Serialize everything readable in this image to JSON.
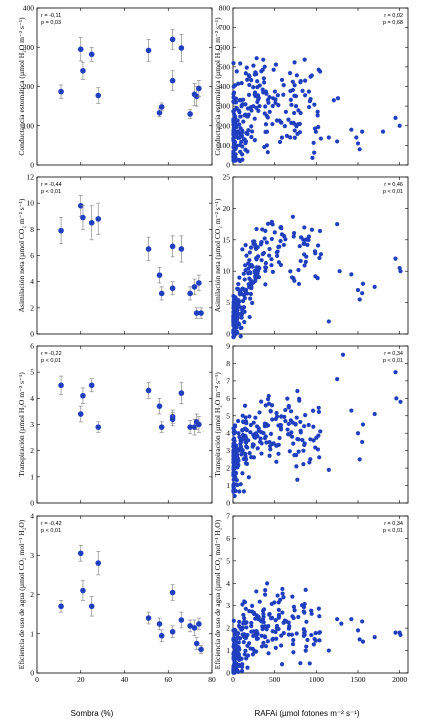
{
  "figure": {
    "shared_xlabel_left": "Sombra (%)",
    "shared_xlabel_right": "RAFAi (µmol fotones m⁻² s⁻¹)",
    "marker_color": "#1f3fbf",
    "errorbar_color": "#8a8a8a"
  },
  "chart_data": [
    {
      "id": "A1",
      "type": "scatter",
      "row": 0,
      "col": 0,
      "ylabel": "Conductancia estomática (µmol H₂O m⁻² s⁻¹)",
      "xlim": [
        0,
        80
      ],
      "ylim": [
        0,
        400
      ],
      "xticks": [
        0,
        20,
        40,
        60,
        80
      ],
      "yticks": [
        0,
        100,
        200,
        300,
        400
      ],
      "stat_r": "r = -0,11",
      "stat_p": "p = 0,03",
      "points": [
        {
          "x": 11,
          "y": 187,
          "err": 17
        },
        {
          "x": 20,
          "y": 295,
          "err": 30
        },
        {
          "x": 21,
          "y": 240,
          "err": 22
        },
        {
          "x": 25,
          "y": 282,
          "err": 18
        },
        {
          "x": 28,
          "y": 177,
          "err": 20
        },
        {
          "x": 51,
          "y": 292,
          "err": 28
        },
        {
          "x": 56,
          "y": 133,
          "err": 10
        },
        {
          "x": 57,
          "y": 148,
          "err": 10
        },
        {
          "x": 62,
          "y": 320,
          "err": 25
        },
        {
          "x": 62,
          "y": 215,
          "err": 25
        },
        {
          "x": 66,
          "y": 298,
          "err": 35
        },
        {
          "x": 70,
          "y": 130,
          "err": 12
        },
        {
          "x": 72,
          "y": 180,
          "err": 28
        },
        {
          "x": 73,
          "y": 175,
          "err": 25
        },
        {
          "x": 74,
          "y": 195,
          "err": 20
        }
      ]
    },
    {
      "id": "B1",
      "type": "scatter",
      "row": 0,
      "col": 1,
      "ylabel": "Conductancia estomática (µmol H₂O m⁻² s⁻¹)",
      "xlim": [
        0,
        2100
      ],
      "ylim": [
        0,
        800
      ],
      "xticks": [
        0,
        500,
        1000,
        1500,
        2000
      ],
      "yticks": [
        0,
        100,
        200,
        300,
        400,
        500,
        600,
        700,
        800
      ],
      "stat_r": "r = 0,02",
      "stat_p": "p = 0,68",
      "cloud": {
        "seed": 11,
        "n": 260,
        "ymin": 20,
        "ymax": 720,
        "trend": [
          [
            0,
            150
          ],
          [
            300,
            320
          ],
          [
            2000,
            200
          ]
        ],
        "spread": 160
      },
      "points": [
        {
          "x": 1150,
          "y": 140
        },
        {
          "x": 1210,
          "y": 330
        },
        {
          "x": 1260,
          "y": 340
        },
        {
          "x": 1420,
          "y": 180
        },
        {
          "x": 1480,
          "y": 140
        },
        {
          "x": 1500,
          "y": 110
        },
        {
          "x": 1520,
          "y": 80
        },
        {
          "x": 1550,
          "y": 170
        },
        {
          "x": 1800,
          "y": 170
        },
        {
          "x": 1950,
          "y": 240
        },
        {
          "x": 2000,
          "y": 200
        },
        {
          "x": 1250,
          "y": 120
        }
      ]
    },
    {
      "id": "A2",
      "type": "scatter",
      "row": 1,
      "col": 0,
      "ylabel": "Asimilación neta (µmol CO₂ m⁻² s⁻¹)",
      "xlim": [
        0,
        80
      ],
      "ylim": [
        0,
        12
      ],
      "xticks": [
        0,
        20,
        40,
        60,
        80
      ],
      "yticks": [
        0,
        2,
        4,
        6,
        8,
        10,
        12
      ],
      "stat_r": "r = -0,44",
      "stat_p": "p < 0,01",
      "points": [
        {
          "x": 11,
          "y": 7.9,
          "err": 1.0
        },
        {
          "x": 20,
          "y": 9.8,
          "err": 0.8
        },
        {
          "x": 21,
          "y": 8.9,
          "err": 0.9
        },
        {
          "x": 25,
          "y": 8.5,
          "err": 1.3
        },
        {
          "x": 28,
          "y": 8.8,
          "err": 1.2
        },
        {
          "x": 51,
          "y": 6.5,
          "err": 0.9
        },
        {
          "x": 56,
          "y": 4.5,
          "err": 0.6
        },
        {
          "x": 57,
          "y": 3.1,
          "err": 0.5
        },
        {
          "x": 62,
          "y": 6.7,
          "err": 0.8
        },
        {
          "x": 62,
          "y": 3.5,
          "err": 0.5
        },
        {
          "x": 66,
          "y": 6.5,
          "err": 1.0
        },
        {
          "x": 70,
          "y": 3.1,
          "err": 0.5
        },
        {
          "x": 72,
          "y": 3.6,
          "err": 0.6
        },
        {
          "x": 73,
          "y": 1.6,
          "err": 0.4
        },
        {
          "x": 74,
          "y": 3.9,
          "err": 0.6
        },
        {
          "x": 75,
          "y": 1.6,
          "err": 0.4
        }
      ]
    },
    {
      "id": "B2",
      "type": "scatter",
      "row": 1,
      "col": 1,
      "ylabel": "Asimilación neta (µmol CO₂ m⁻² s⁻¹)",
      "xlim": [
        0,
        2100
      ],
      "ylim": [
        0,
        25
      ],
      "xticks": [
        0,
        500,
        1000,
        1500,
        2000
      ],
      "yticks": [
        0,
        5,
        10,
        15,
        20,
        25
      ],
      "stat_r": "r = 0,46",
      "stat_p": "p < 0,01",
      "cloud": {
        "seed": 22,
        "n": 260,
        "ymin": -0.5,
        "ymax": 22.5,
        "trend": [
          [
            0,
            1
          ],
          [
            100,
            6
          ],
          [
            300,
            12
          ],
          [
            600,
            14
          ],
          [
            2000,
            11
          ]
        ],
        "spread": 3.2
      },
      "points": [
        {
          "x": 1150,
          "y": 2.0
        },
        {
          "x": 1250,
          "y": 17.5
        },
        {
          "x": 1280,
          "y": 10.0
        },
        {
          "x": 1420,
          "y": 9.5
        },
        {
          "x": 1500,
          "y": 7.0
        },
        {
          "x": 1520,
          "y": 5.5
        },
        {
          "x": 1550,
          "y": 6.5
        },
        {
          "x": 1560,
          "y": 8.0
        },
        {
          "x": 1700,
          "y": 7.5
        },
        {
          "x": 1950,
          "y": 12.0
        },
        {
          "x": 2000,
          "y": 10.5
        },
        {
          "x": 2010,
          "y": 10.0
        }
      ]
    },
    {
      "id": "A3",
      "type": "scatter",
      "row": 2,
      "col": 0,
      "ylabel": "Transpiración (µmol H₂O m⁻² s⁻¹)",
      "xlim": [
        0,
        80
      ],
      "ylim": [
        0,
        6
      ],
      "xticks": [
        0,
        20,
        40,
        60,
        80
      ],
      "yticks": [
        0,
        1,
        2,
        3,
        4,
        5,
        6
      ],
      "stat_r": "r = -0,22",
      "stat_p": "p < 0,01",
      "points": [
        {
          "x": 11,
          "y": 4.5,
          "err": 0.35
        },
        {
          "x": 20,
          "y": 3.4,
          "err": 0.3
        },
        {
          "x": 21,
          "y": 4.1,
          "err": 0.3
        },
        {
          "x": 25,
          "y": 4.5,
          "err": 0.25
        },
        {
          "x": 28,
          "y": 2.9,
          "err": 0.2
        },
        {
          "x": 51,
          "y": 4.3,
          "err": 0.3
        },
        {
          "x": 56,
          "y": 3.7,
          "err": 0.3
        },
        {
          "x": 57,
          "y": 2.9,
          "err": 0.2
        },
        {
          "x": 62,
          "y": 3.3,
          "err": 0.25
        },
        {
          "x": 62,
          "y": 3.2,
          "err": 0.25
        },
        {
          "x": 66,
          "y": 4.2,
          "err": 0.4
        },
        {
          "x": 70,
          "y": 2.9,
          "err": 0.25
        },
        {
          "x": 72,
          "y": 2.9,
          "err": 0.3
        },
        {
          "x": 73,
          "y": 3.1,
          "err": 0.3
        },
        {
          "x": 74,
          "y": 3.0,
          "err": 0.3
        }
      ]
    },
    {
      "id": "B3",
      "type": "scatter",
      "row": 2,
      "col": 1,
      "ylabel": "Transpiración (µmol H₂O m⁻² s⁻¹)",
      "xlim": [
        0,
        2100
      ],
      "ylim": [
        0,
        9
      ],
      "xticks": [
        0,
        500,
        1000,
        1500,
        2000
      ],
      "yticks": [
        0,
        1,
        2,
        3,
        4,
        5,
        6,
        7,
        8,
        9
      ],
      "stat_r": "r = 0,34",
      "stat_p": "p < 0,01",
      "cloud": {
        "seed": 33,
        "n": 260,
        "ymin": 0.4,
        "ymax": 7.8,
        "trend": [
          [
            0,
            2.2
          ],
          [
            200,
            3.8
          ],
          [
            500,
            4.2
          ],
          [
            2000,
            4.6
          ]
        ],
        "spread": 1.3
      },
      "points": [
        {
          "x": 1150,
          "y": 1.9
        },
        {
          "x": 1250,
          "y": 7.1
        },
        {
          "x": 1320,
          "y": 8.5
        },
        {
          "x": 1420,
          "y": 5.3
        },
        {
          "x": 1500,
          "y": 4.0
        },
        {
          "x": 1520,
          "y": 2.5
        },
        {
          "x": 1550,
          "y": 3.5
        },
        {
          "x": 1560,
          "y": 4.5
        },
        {
          "x": 1700,
          "y": 5.1
        },
        {
          "x": 1950,
          "y": 7.5
        },
        {
          "x": 1960,
          "y": 6.0
        },
        {
          "x": 2010,
          "y": 5.8
        }
      ]
    },
    {
      "id": "A4",
      "type": "scatter",
      "row": 3,
      "col": 0,
      "ylabel": "Eficiencia de uso de agua (µmol CO₂ mol⁻¹ H₂O)",
      "xlim": [
        0,
        80
      ],
      "ylim": [
        0,
        4
      ],
      "xticks": [
        0,
        20,
        40,
        60,
        80
      ],
      "yticks": [
        0,
        1,
        2,
        3,
        4
      ],
      "stat_r": "r = -0,42",
      "stat_p": "p < 0,01",
      "points": [
        {
          "x": 11,
          "y": 1.7,
          "err": 0.15
        },
        {
          "x": 20,
          "y": 3.05,
          "err": 0.2
        },
        {
          "x": 21,
          "y": 2.1,
          "err": 0.25
        },
        {
          "x": 25,
          "y": 1.7,
          "err": 0.25
        },
        {
          "x": 28,
          "y": 2.8,
          "err": 0.3
        },
        {
          "x": 51,
          "y": 1.4,
          "err": 0.15
        },
        {
          "x": 56,
          "y": 1.25,
          "err": 0.15
        },
        {
          "x": 57,
          "y": 0.95,
          "err": 0.15
        },
        {
          "x": 62,
          "y": 2.05,
          "err": 0.2
        },
        {
          "x": 62,
          "y": 1.05,
          "err": 0.15
        },
        {
          "x": 66,
          "y": 1.35,
          "err": 0.2
        },
        {
          "x": 70,
          "y": 1.2,
          "err": 0.15
        },
        {
          "x": 72,
          "y": 1.15,
          "err": 0.2
        },
        {
          "x": 73,
          "y": 0.75,
          "err": 0.15
        },
        {
          "x": 74,
          "y": 1.25,
          "err": 0.15
        },
        {
          "x": 75,
          "y": 0.6,
          "err": 0.1
        }
      ]
    },
    {
      "id": "B4",
      "type": "scatter",
      "row": 3,
      "col": 1,
      "ylabel": "Eficiencia de uso de agua (µmol CO₂ mol⁻¹ H₂O)",
      "xlim": [
        0,
        2100
      ],
      "ylim": [
        0,
        7
      ],
      "xticks": [
        0,
        500,
        1000,
        1500,
        2000
      ],
      "yticks": [
        0,
        1,
        2,
        3,
        4,
        5,
        6,
        7
      ],
      "stat_r": "r = 0,34",
      "stat_p": "p < 0,01",
      "cloud": {
        "seed": 44,
        "n": 260,
        "ymin": 0.0,
        "ymax": 6.5,
        "trend": [
          [
            0,
            0.5
          ],
          [
            150,
            1.6
          ],
          [
            400,
            2.2
          ],
          [
            2000,
            2.0
          ]
        ],
        "spread": 0.9
      },
      "points": [
        {
          "x": 1150,
          "y": 1.0
        },
        {
          "x": 1250,
          "y": 2.4
        },
        {
          "x": 1300,
          "y": 2.2
        },
        {
          "x": 1420,
          "y": 2.4
        },
        {
          "x": 1500,
          "y": 1.9
        },
        {
          "x": 1520,
          "y": 1.5
        },
        {
          "x": 1550,
          "y": 2.3
        },
        {
          "x": 1560,
          "y": 1.4
        },
        {
          "x": 1700,
          "y": 1.6
        },
        {
          "x": 1950,
          "y": 1.8
        },
        {
          "x": 2000,
          "y": 1.8
        },
        {
          "x": 2010,
          "y": 1.7
        }
      ]
    }
  ]
}
